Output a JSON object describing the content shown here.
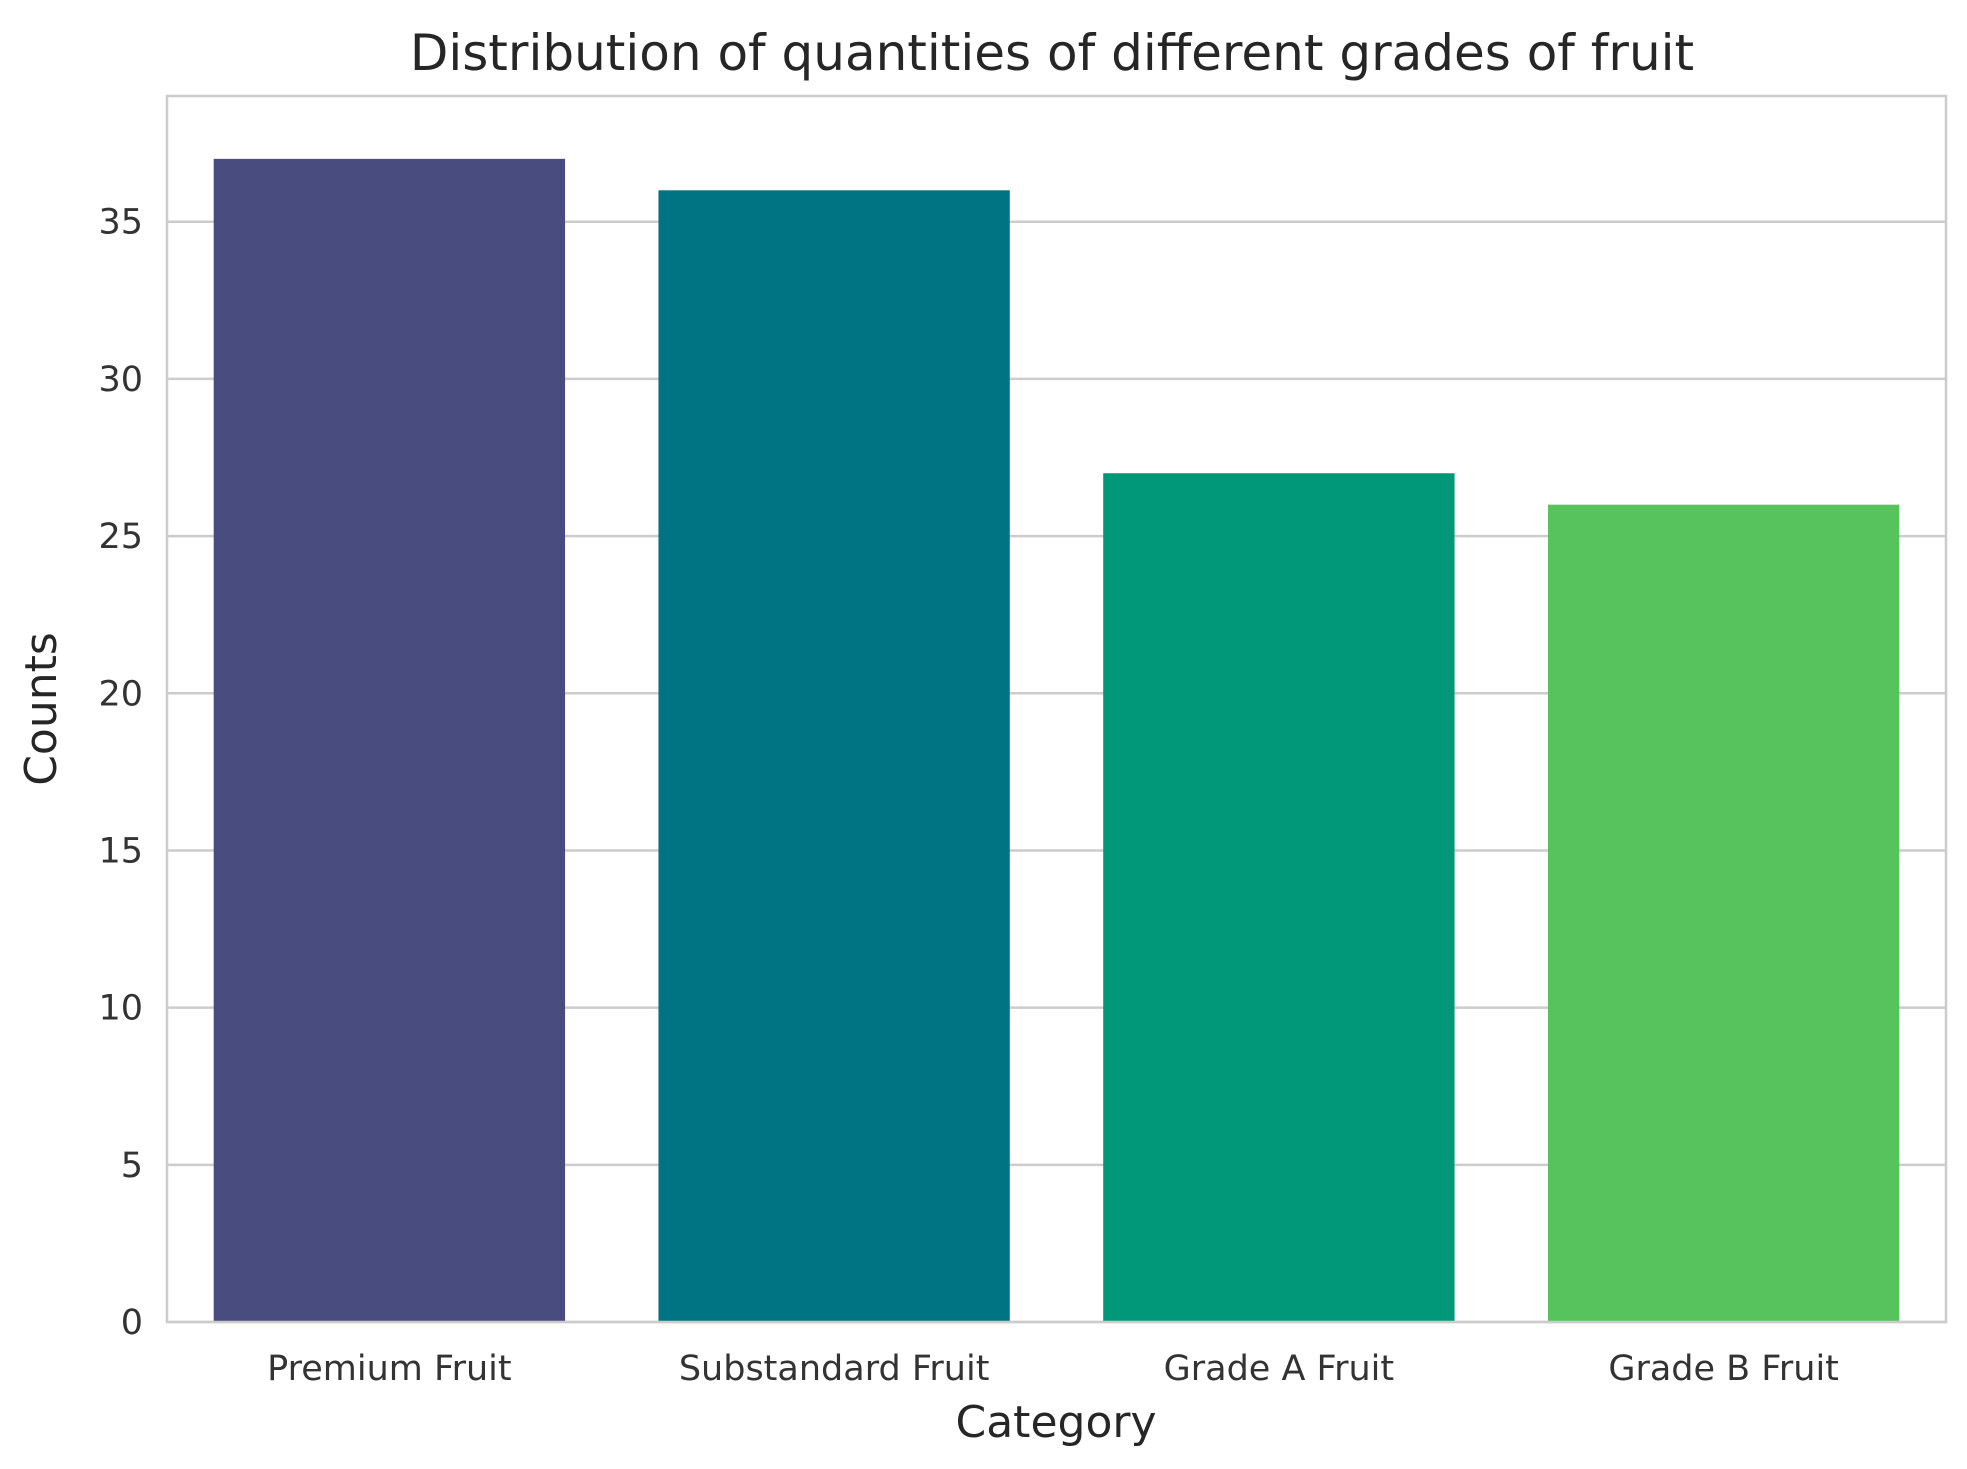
{
  "chart_data": {
    "type": "bar",
    "title": "Distribution of quantities of different grades of fruit",
    "xlabel": "Category",
    "ylabel": "Counts",
    "categories": [
      "Premium Fruit",
      "Substandard Fruit",
      "Grade A Fruit",
      "Grade B Fruit"
    ],
    "values": [
      37,
      36,
      27,
      26
    ],
    "colors": [
      "#484c7f",
      "#017484",
      "#019879",
      "#56c35d"
    ],
    "ylim": [
      0,
      39
    ],
    "yticks": [
      0,
      5,
      10,
      15,
      20,
      25,
      30,
      35
    ],
    "grid": "y",
    "grid_color": "#cccccc",
    "axes_edge_color": "#cccccc",
    "legend": "none"
  }
}
